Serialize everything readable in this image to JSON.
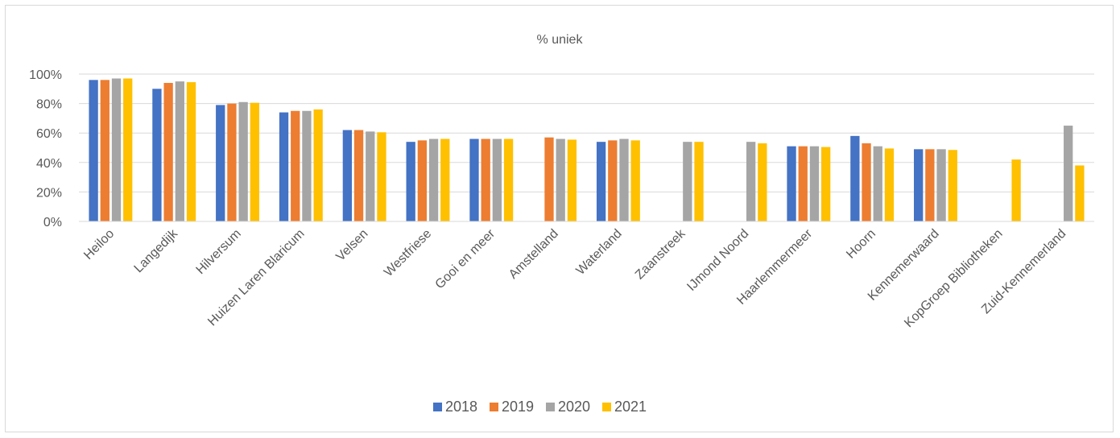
{
  "chart_data": {
    "type": "bar",
    "title": "% uniek",
    "categories": [
      "Heiloo",
      "Langedijk",
      "Hilversum",
      "Huizen Laren Blaricum",
      "Velsen",
      "Westfriese",
      "Gooi en meer",
      "Amstelland",
      "Waterland",
      "Zaanstreek",
      "IJmond Noord",
      "Haarlemmermeer",
      "Hoorn",
      "Kennemerwaard",
      "KopGroep Bibliotheken",
      "Zuid-Kennemerland"
    ],
    "series": [
      {
        "name": "2018",
        "color": "#4472c4",
        "values": [
          96,
          90,
          79,
          74,
          62,
          54,
          56,
          null,
          54,
          null,
          null,
          51,
          58,
          49,
          null,
          null
        ]
      },
      {
        "name": "2019",
        "color": "#ed7d31",
        "values": [
          96,
          94,
          80,
          75,
          62,
          55,
          56,
          57,
          55,
          null,
          null,
          51,
          53,
          49,
          null,
          null
        ]
      },
      {
        "name": "2020",
        "color": "#a5a5a5",
        "values": [
          97,
          95,
          81,
          75,
          61,
          56,
          56,
          56,
          56,
          54,
          54,
          51,
          51,
          49,
          null,
          65
        ]
      },
      {
        "name": "2021",
        "color": "#ffc000",
        "values": [
          97,
          94.5,
          80.5,
          76,
          60.5,
          56,
          56,
          55.5,
          55,
          54,
          53,
          50.5,
          49.5,
          48.5,
          42,
          38
        ]
      }
    ],
    "yticks": [
      "0%",
      "20%",
      "40%",
      "60%",
      "80%",
      "100%"
    ],
    "ylim": [
      0,
      100
    ],
    "grid": true,
    "legend": "bottom"
  }
}
